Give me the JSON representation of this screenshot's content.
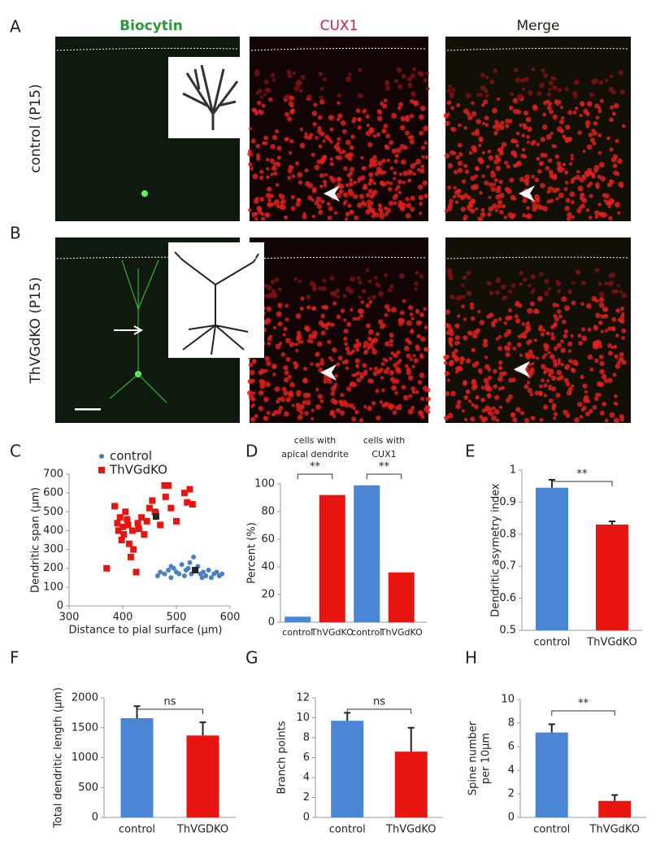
{
  "panel_labels": [
    "A",
    "B",
    "C",
    "D",
    "E",
    "F",
    "G",
    "H"
  ],
  "image_panels": {
    "columns": [
      "Biocytin",
      "CUX1",
      "Merge"
    ],
    "rows": [
      "control (P15)",
      "ThVGdKO (P15)"
    ]
  },
  "chart_data": [
    {
      "type": "scatter",
      "xlabel": "Distance to pial surface (μm)",
      "ylabel": "Dendritic span (μm)",
      "xlim": [
        300,
        600
      ],
      "xticks": [
        300,
        400,
        500,
        600
      ],
      "ylim": [
        0,
        700
      ],
      "yticks": [
        0,
        100,
        200,
        300,
        400,
        500,
        600,
        700
      ],
      "legend": "upper right",
      "series": [
        {
          "name": "control",
          "color": "#4a7fc8",
          "x": [
            465,
            470,
            478,
            485,
            490,
            495,
            500,
            505,
            510,
            515,
            518,
            522,
            528,
            532,
            535,
            540,
            545,
            550,
            555,
            560,
            565,
            570,
            575,
            580,
            585,
            490,
            525,
            548
          ],
          "values": [
            160,
            180,
            170,
            190,
            150,
            200,
            180,
            170,
            220,
            160,
            190,
            200,
            170,
            260,
            190,
            210,
            170,
            180,
            160,
            190,
            150,
            170,
            180,
            160,
            170,
            210,
            230,
            150
          ]
        },
        {
          "name": "ThVGdKO",
          "color": "#e8140f",
          "x": [
            370,
            385,
            390,
            392,
            395,
            398,
            400,
            402,
            405,
            408,
            410,
            412,
            415,
            418,
            420,
            425,
            428,
            430,
            435,
            440,
            445,
            450,
            455,
            460,
            470,
            478,
            480,
            485,
            490,
            500,
            515,
            520,
            525,
            530
          ],
          "values": [
            200,
            530,
            440,
            400,
            470,
            350,
            420,
            380,
            500,
            460,
            430,
            330,
            260,
            400,
            300,
            180,
            440,
            410,
            470,
            380,
            450,
            520,
            560,
            500,
            430,
            640,
            580,
            640,
            520,
            450,
            600,
            550,
            620,
            540
          ]
        }
      ],
      "means": {
        "color": "#222222",
        "x": [
          462,
          535
        ],
        "y": [
          475,
          190
        ],
        "errors": [
          35,
          20
        ]
      }
    },
    {
      "type": "grouped-bar",
      "ylabel": "Percent (%)",
      "ylim": [
        0,
        100
      ],
      "yticks": [
        0,
        20,
        40,
        60,
        80,
        100
      ],
      "colors": [
        "#4a86d4",
        "#e8140f"
      ],
      "groups": [
        {
          "label": [
            "cells with",
            "apical dendrite"
          ],
          "categories": [
            "control",
            "ThVGdKO"
          ],
          "values": [
            4,
            92
          ],
          "significance": "**"
        },
        {
          "label": [
            "cells with",
            "CUX1"
          ],
          "categories": [
            "control",
            "ThVGdKO"
          ],
          "values": [
            99,
            36
          ],
          "significance": "**"
        }
      ]
    },
    {
      "type": "bar",
      "ylabel": [
        "Dendritic asymetry index"
      ],
      "categories": [
        "control",
        "ThVGdKO"
      ],
      "values": [
        0.945,
        0.83
      ],
      "errors": [
        0.025,
        0.01
      ],
      "colors": [
        "#4a86d4",
        "#e8140f"
      ],
      "ylim": [
        0.5,
        1
      ],
      "yticks": [
        0.5,
        0.6,
        0.7,
        0.8,
        0.9,
        1
      ],
      "significance": "**"
    },
    {
      "type": "bar",
      "ylabel": [
        "Total dendritic length (μm)"
      ],
      "categories": [
        "control",
        "ThVGDKO"
      ],
      "values": [
        1660,
        1370
      ],
      "errors": [
        200,
        220
      ],
      "colors": [
        "#4a86d4",
        "#e8140f"
      ],
      "ylim": [
        0,
        2000
      ],
      "yticks": [
        0,
        500,
        1000,
        1500,
        2000
      ],
      "significance": "ns"
    },
    {
      "type": "bar",
      "ylabel": [
        "Branch points"
      ],
      "categories": [
        "control",
        "ThVGdKO"
      ],
      "values": [
        9.7,
        6.6
      ],
      "errors": [
        0.8,
        2.4
      ],
      "colors": [
        "#4a86d4",
        "#e8140f"
      ],
      "ylim": [
        0,
        12
      ],
      "yticks": [
        0,
        2,
        4,
        6,
        8,
        10,
        12
      ],
      "significance": "ns"
    },
    {
      "type": "bar",
      "ylabel": [
        "Spine number",
        "per 10μm"
      ],
      "categories": [
        "control",
        "ThVGdKO"
      ],
      "values": [
        7.2,
        1.4
      ],
      "errors": [
        0.7,
        0.5
      ],
      "colors": [
        "#4a86d4",
        "#e8140f"
      ],
      "ylim": [
        0,
        10
      ],
      "yticks": [
        0,
        2,
        4,
        6,
        8,
        10
      ],
      "significance": "**"
    }
  ]
}
